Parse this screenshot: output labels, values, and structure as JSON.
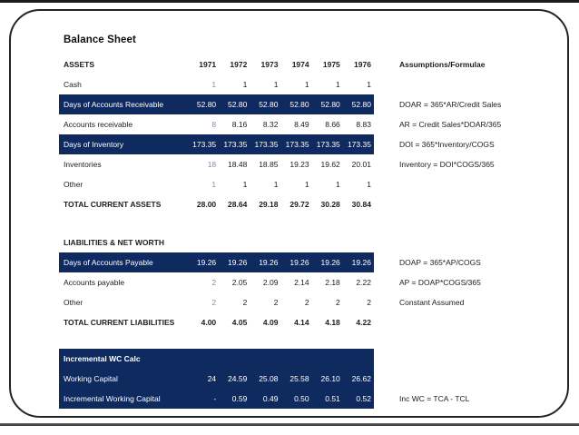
{
  "slide": {
    "title": "Balance Sheet"
  },
  "colors": {
    "navy_band": "#0f2a5e",
    "muted_input_value": "#8090a8",
    "text": "#1c1c1c"
  },
  "table": {
    "years": [
      "1971",
      "1972",
      "1973",
      "1974",
      "1975",
      "1976"
    ],
    "assumptions_header": "Assumptions/Formulae",
    "sections": [
      {
        "id": "assets",
        "rows": [
          {
            "kind": "colhead",
            "label": "ASSETS",
            "values": [
              "1971",
              "1972",
              "1973",
              "1974",
              "1975",
              "1976"
            ],
            "formula": "Assumptions/Formulae"
          },
          {
            "kind": "normal",
            "label": "Cash",
            "values": [
              "1",
              "1",
              "1",
              "1",
              "1",
              "1"
            ],
            "muted_first": true
          },
          {
            "kind": "navy",
            "label": "Days of Accounts Receivable",
            "values": [
              "52.80",
              "52.80",
              "52.80",
              "52.80",
              "52.80",
              "52.80"
            ],
            "formula": "DOAR = 365*AR/Credit Sales"
          },
          {
            "kind": "normal",
            "label": "Accounts receivable",
            "values": [
              "8",
              "8.16",
              "8.32",
              "8.49",
              "8.66",
              "8.83"
            ],
            "muted_first": true,
            "formula": "AR = Credit Sales*DOAR/365"
          },
          {
            "kind": "navy",
            "label": "Days of Inventory",
            "values": [
              "173.35",
              "173.35",
              "173.35",
              "173.35",
              "173.35",
              "173.35"
            ],
            "formula": "DOI = 365*Inventory/COGS"
          },
          {
            "kind": "normal",
            "label": "Inventories",
            "values": [
              "18",
              "18.48",
              "18.85",
              "19.23",
              "19.62",
              "20.01"
            ],
            "muted_first": true,
            "formula": "Inventory = DOI*COGS/365"
          },
          {
            "kind": "normal",
            "label": "Other",
            "values": [
              "1",
              "1",
              "1",
              "1",
              "1",
              "1"
            ],
            "muted_first": true
          },
          {
            "kind": "total",
            "label": "TOTAL CURRENT ASSETS",
            "values": [
              "28.00",
              "28.64",
              "29.18",
              "29.72",
              "30.28",
              "30.84"
            ]
          }
        ]
      },
      {
        "id": "liabilities",
        "rows": [
          {
            "kind": "sechead",
            "label": "LIABILITIES & NET WORTH"
          },
          {
            "kind": "navy",
            "label": "Days of Accounts Payable",
            "values": [
              "19.26",
              "19.26",
              "19.26",
              "19.26",
              "19.26",
              "19.26"
            ],
            "formula": "DOAP = 365*AP/COGS"
          },
          {
            "kind": "normal",
            "label": "Accounts payable",
            "values": [
              "2",
              "2.05",
              "2.09",
              "2.14",
              "2.18",
              "2.22"
            ],
            "muted_first": true,
            "formula": "AP = DOAP*COGS/365"
          },
          {
            "kind": "normal",
            "label": "Other",
            "values": [
              "2",
              "2",
              "2",
              "2",
              "2",
              "2"
            ],
            "muted_first": true,
            "formula": "Constant Assumed"
          },
          {
            "kind": "total",
            "label": "TOTAL CURRENT LIABILITIES",
            "values": [
              "4.00",
              "4.05",
              "4.09",
              "4.14",
              "4.18",
              "4.22"
            ]
          }
        ]
      },
      {
        "id": "wc",
        "rows": [
          {
            "kind": "navy",
            "label": "Incremental WC Calc",
            "bold_label": true
          },
          {
            "kind": "navy",
            "label": "Working Capital",
            "values": [
              "24",
              "24.59",
              "25.08",
              "25.58",
              "26.10",
              "26.62"
            ]
          },
          {
            "kind": "navy",
            "label": "Incremental Working Capital",
            "values": [
              "-",
              "0.59",
              "0.49",
              "0.50",
              "0.51",
              "0.52"
            ],
            "formula": "Inc WC = TCA - TCL"
          }
        ]
      }
    ]
  }
}
